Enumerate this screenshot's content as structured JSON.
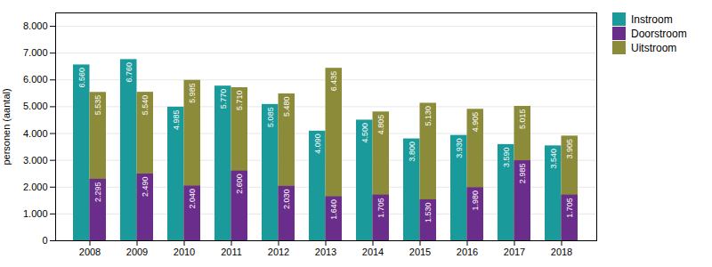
{
  "chart_data": {
    "type": "bar",
    "categories": [
      "2008",
      "2009",
      "2010",
      "2011",
      "2012",
      "2013",
      "2014",
      "2015",
      "2016",
      "2017",
      "2018"
    ],
    "series": [
      {
        "name": "Instroom",
        "color": "#1a9a9a",
        "values": [
          6560,
          6760,
          4985,
          5770,
          5085,
          4090,
          4500,
          3800,
          3930,
          3590,
          3540
        ],
        "value_labels": [
          "6.560",
          "6.760",
          "4.985",
          "5.770",
          "5.085",
          "4.090",
          "4.500",
          "3.800",
          "3.930",
          "3.590",
          "3.540"
        ]
      },
      {
        "name": "Doorstroom",
        "color": "#6b2d8b",
        "values": [
          2295,
          2490,
          2040,
          2600,
          2030,
          1640,
          1705,
          1530,
          1980,
          2985,
          1705
        ],
        "value_labels": [
          "2.295",
          "2.490",
          "2.040",
          "2.600",
          "2.030",
          "1.640",
          "1.705",
          "1.530",
          "1.980",
          "2.985",
          "1.705"
        ]
      },
      {
        "name": "Uitstroom",
        "color": "#8b8b3a",
        "values": [
          5535,
          5540,
          5985,
          5710,
          5480,
          6435,
          4805,
          5130,
          4905,
          5015,
          3905
        ],
        "value_labels": [
          "5.535",
          "5.540",
          "5.985",
          "5.710",
          "5.480",
          "6.435",
          "4.805",
          "5.130",
          "4.905",
          "5.015",
          "3.905"
        ]
      }
    ],
    "ylabel": "personen (aantal)",
    "ylim": [
      0,
      8500
    ],
    "yticks": [
      0,
      {
        "value": 1000,
        "label": "1.000"
      },
      {
        "value": 2000,
        "label": "2.000"
      },
      {
        "value": 3000,
        "label": "3.000"
      },
      {
        "value": 4000,
        "label": "4.000"
      },
      {
        "value": 5000,
        "label": "5.000"
      },
      {
        "value": 6000,
        "label": "6.000"
      },
      {
        "value": 7000,
        "label": "7.000"
      },
      {
        "value": 8000,
        "label": "8.000"
      }
    ],
    "grid": true,
    "legend": "upper right",
    "data_labels": true
  }
}
